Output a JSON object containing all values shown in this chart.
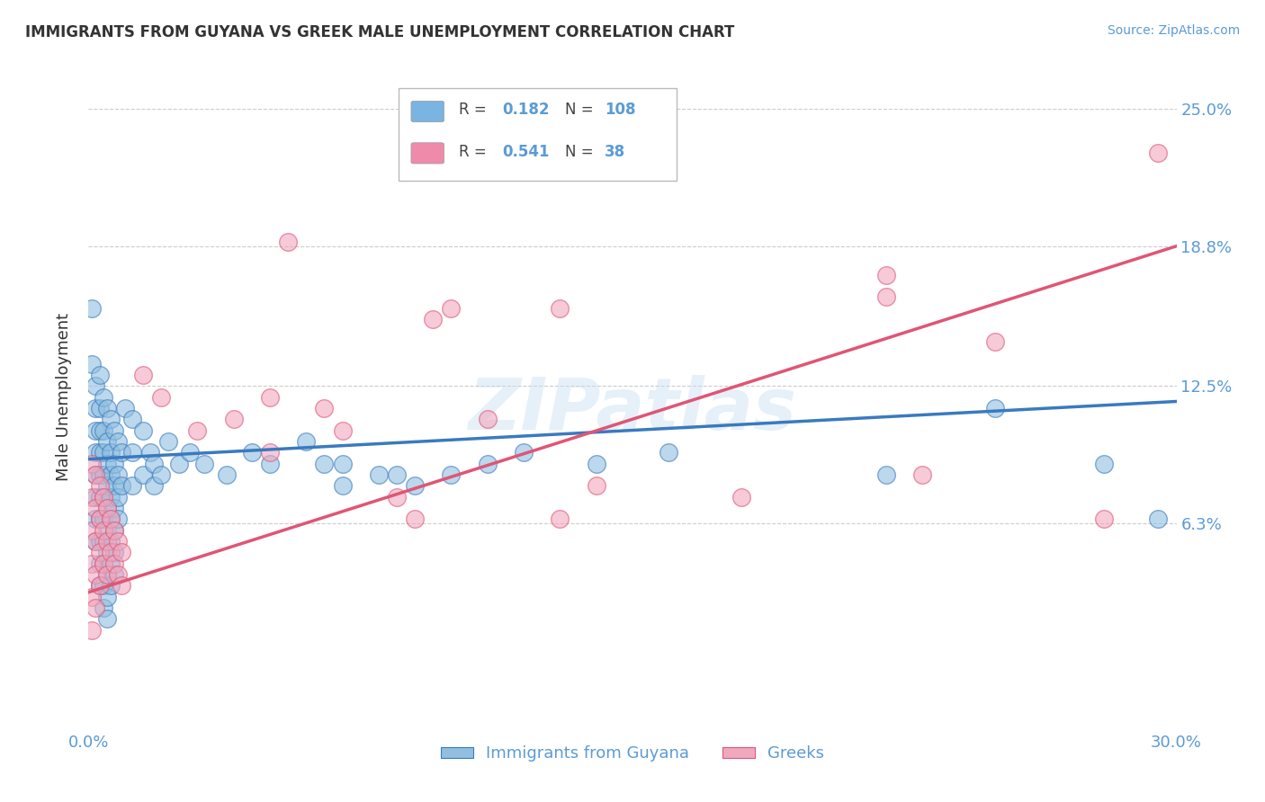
{
  "title": "IMMIGRANTS FROM GUYANA VS GREEK MALE UNEMPLOYMENT CORRELATION CHART",
  "source_text": "Source: ZipAtlas.com",
  "ylabel": "Male Unemployment",
  "watermark": "ZIPatlas",
  "xmin": 0.0,
  "xmax": 0.3,
  "ymin": -0.03,
  "ymax": 0.27,
  "yticks": [
    0.063,
    0.125,
    0.188,
    0.25
  ],
  "ytick_labels": [
    "6.3%",
    "12.5%",
    "18.8%",
    "25.0%"
  ],
  "legend_entries": [
    {
      "label": "Immigrants from Guyana",
      "R": "0.182",
      "N": "108",
      "color": "#7ab4e0"
    },
    {
      "label": "Greeks",
      "R": "0.541",
      "N": "38",
      "color": "#f08aaa"
    }
  ],
  "blue_color": "#3a7abf",
  "pink_color": "#e05575",
  "blue_scatter_color": "#90bfe0",
  "pink_scatter_color": "#f0a8be",
  "background_color": "#ffffff",
  "grid_color": "#cccccc",
  "axis_label_color": "#5b9bd5",
  "title_color": "#333333",
  "ylabel_color": "#333333",
  "blue_line": {
    "x0": 0.0,
    "y0": 0.092,
    "x1": 0.3,
    "y1": 0.118
  },
  "pink_line": {
    "x0": 0.0,
    "y0": 0.032,
    "x1": 0.3,
    "y1": 0.188
  },
  "blue_points": [
    [
      0.001,
      0.16
    ],
    [
      0.001,
      0.135
    ],
    [
      0.002,
      0.125
    ],
    [
      0.002,
      0.115
    ],
    [
      0.002,
      0.105
    ],
    [
      0.002,
      0.095
    ],
    [
      0.002,
      0.085
    ],
    [
      0.002,
      0.075
    ],
    [
      0.002,
      0.065
    ],
    [
      0.002,
      0.055
    ],
    [
      0.003,
      0.13
    ],
    [
      0.003,
      0.115
    ],
    [
      0.003,
      0.105
    ],
    [
      0.003,
      0.095
    ],
    [
      0.003,
      0.085
    ],
    [
      0.003,
      0.075
    ],
    [
      0.003,
      0.065
    ],
    [
      0.003,
      0.055
    ],
    [
      0.003,
      0.045
    ],
    [
      0.003,
      0.035
    ],
    [
      0.004,
      0.12
    ],
    [
      0.004,
      0.105
    ],
    [
      0.004,
      0.095
    ],
    [
      0.004,
      0.085
    ],
    [
      0.004,
      0.075
    ],
    [
      0.004,
      0.065
    ],
    [
      0.004,
      0.055
    ],
    [
      0.004,
      0.045
    ],
    [
      0.004,
      0.035
    ],
    [
      0.004,
      0.025
    ],
    [
      0.005,
      0.115
    ],
    [
      0.005,
      0.1
    ],
    [
      0.005,
      0.09
    ],
    [
      0.005,
      0.08
    ],
    [
      0.005,
      0.07
    ],
    [
      0.005,
      0.06
    ],
    [
      0.005,
      0.05
    ],
    [
      0.005,
      0.04
    ],
    [
      0.005,
      0.03
    ],
    [
      0.005,
      0.02
    ],
    [
      0.006,
      0.11
    ],
    [
      0.006,
      0.095
    ],
    [
      0.006,
      0.085
    ],
    [
      0.006,
      0.075
    ],
    [
      0.006,
      0.065
    ],
    [
      0.006,
      0.055
    ],
    [
      0.006,
      0.045
    ],
    [
      0.006,
      0.035
    ],
    [
      0.007,
      0.105
    ],
    [
      0.007,
      0.09
    ],
    [
      0.007,
      0.08
    ],
    [
      0.007,
      0.07
    ],
    [
      0.007,
      0.06
    ],
    [
      0.007,
      0.05
    ],
    [
      0.007,
      0.04
    ],
    [
      0.008,
      0.1
    ],
    [
      0.008,
      0.085
    ],
    [
      0.008,
      0.075
    ],
    [
      0.008,
      0.065
    ],
    [
      0.009,
      0.095
    ],
    [
      0.009,
      0.08
    ],
    [
      0.01,
      0.115
    ],
    [
      0.012,
      0.11
    ],
    [
      0.012,
      0.095
    ],
    [
      0.012,
      0.08
    ],
    [
      0.015,
      0.105
    ],
    [
      0.015,
      0.085
    ],
    [
      0.017,
      0.095
    ],
    [
      0.018,
      0.09
    ],
    [
      0.018,
      0.08
    ],
    [
      0.02,
      0.085
    ],
    [
      0.022,
      0.1
    ],
    [
      0.025,
      0.09
    ],
    [
      0.028,
      0.095
    ],
    [
      0.032,
      0.09
    ],
    [
      0.038,
      0.085
    ],
    [
      0.045,
      0.095
    ],
    [
      0.05,
      0.09
    ],
    [
      0.06,
      0.1
    ],
    [
      0.065,
      0.09
    ],
    [
      0.07,
      0.09
    ],
    [
      0.07,
      0.08
    ],
    [
      0.08,
      0.085
    ],
    [
      0.085,
      0.085
    ],
    [
      0.09,
      0.08
    ],
    [
      0.1,
      0.085
    ],
    [
      0.11,
      0.09
    ],
    [
      0.12,
      0.095
    ],
    [
      0.14,
      0.09
    ],
    [
      0.16,
      0.095
    ],
    [
      0.22,
      0.085
    ],
    [
      0.25,
      0.115
    ],
    [
      0.28,
      0.09
    ],
    [
      0.295,
      0.065
    ]
  ],
  "pink_points": [
    [
      0.001,
      0.09
    ],
    [
      0.001,
      0.075
    ],
    [
      0.001,
      0.06
    ],
    [
      0.001,
      0.045
    ],
    [
      0.001,
      0.03
    ],
    [
      0.001,
      0.015
    ],
    [
      0.002,
      0.085
    ],
    [
      0.002,
      0.07
    ],
    [
      0.002,
      0.055
    ],
    [
      0.002,
      0.04
    ],
    [
      0.002,
      0.025
    ],
    [
      0.003,
      0.08
    ],
    [
      0.003,
      0.065
    ],
    [
      0.003,
      0.05
    ],
    [
      0.003,
      0.035
    ],
    [
      0.004,
      0.075
    ],
    [
      0.004,
      0.06
    ],
    [
      0.004,
      0.045
    ],
    [
      0.005,
      0.07
    ],
    [
      0.005,
      0.055
    ],
    [
      0.005,
      0.04
    ],
    [
      0.006,
      0.065
    ],
    [
      0.006,
      0.05
    ],
    [
      0.007,
      0.06
    ],
    [
      0.007,
      0.045
    ],
    [
      0.008,
      0.055
    ],
    [
      0.008,
      0.04
    ],
    [
      0.009,
      0.05
    ],
    [
      0.009,
      0.035
    ],
    [
      0.015,
      0.13
    ],
    [
      0.02,
      0.12
    ],
    [
      0.03,
      0.105
    ],
    [
      0.04,
      0.11
    ],
    [
      0.05,
      0.12
    ],
    [
      0.05,
      0.095
    ],
    [
      0.055,
      0.19
    ],
    [
      0.065,
      0.115
    ],
    [
      0.07,
      0.105
    ],
    [
      0.085,
      0.075
    ],
    [
      0.09,
      0.065
    ],
    [
      0.095,
      0.155
    ],
    [
      0.1,
      0.16
    ],
    [
      0.11,
      0.11
    ],
    [
      0.13,
      0.16
    ],
    [
      0.13,
      0.065
    ],
    [
      0.14,
      0.08
    ],
    [
      0.18,
      0.075
    ],
    [
      0.22,
      0.175
    ],
    [
      0.22,
      0.165
    ],
    [
      0.23,
      0.085
    ],
    [
      0.25,
      0.145
    ],
    [
      0.28,
      0.065
    ],
    [
      0.295,
      0.23
    ]
  ]
}
